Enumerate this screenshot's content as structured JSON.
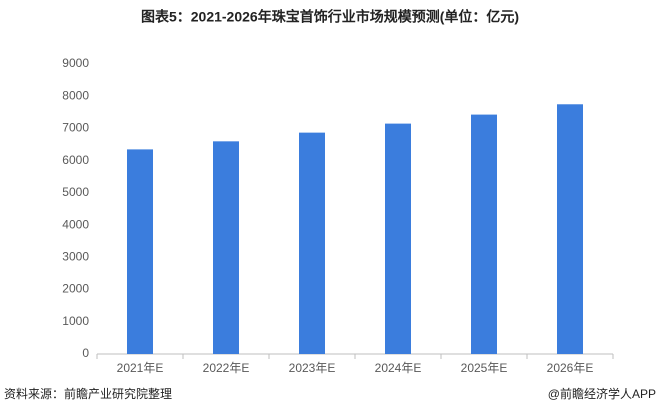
{
  "chart_data": {
    "type": "bar",
    "title": "图表5：2021-2026年珠宝首饰行业市场规模预测(单位：亿元)",
    "categories": [
      "2021年E",
      "2022年E",
      "2023年E",
      "2024年E",
      "2025年E",
      "2026年E"
    ],
    "values": [
      6350,
      6600,
      6870,
      7150,
      7430,
      7750
    ],
    "color": "#3b7ddd",
    "ylim": [
      0,
      9000
    ],
    "yticks": [
      0,
      1000,
      2000,
      3000,
      4000,
      5000,
      6000,
      7000,
      8000,
      9000
    ],
    "grid": false
  },
  "footer": {
    "source": "资料来源：前瞻产业研究院整理",
    "credit": "@前瞻经济学人APP"
  }
}
